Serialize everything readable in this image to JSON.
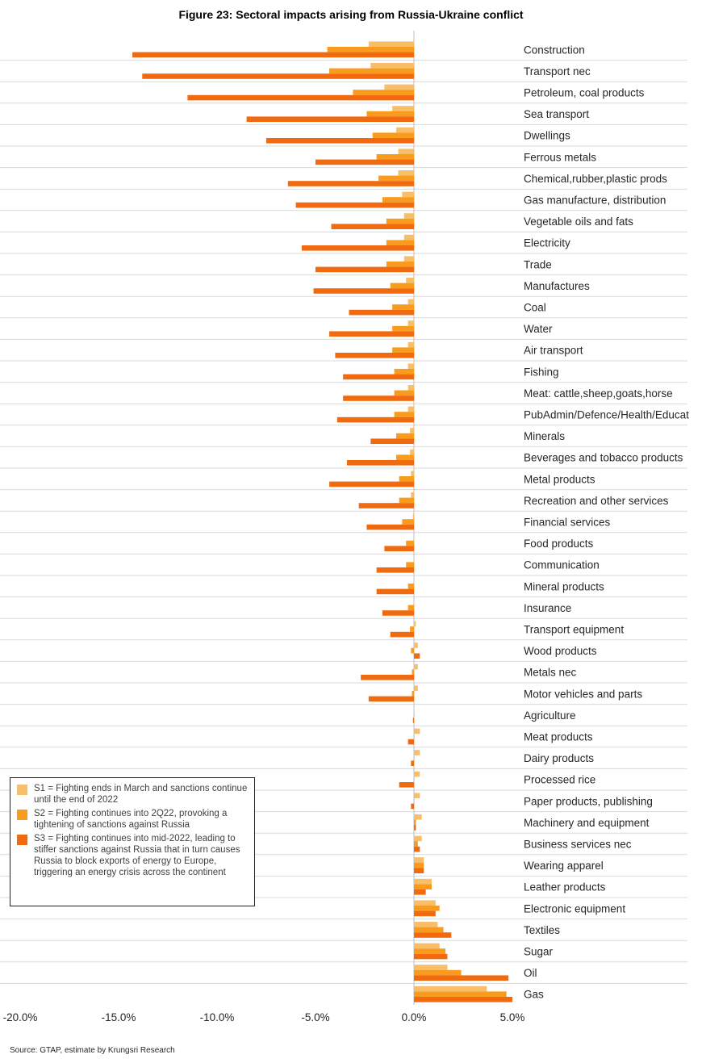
{
  "title": "Figure 23: Sectoral impacts arising from Russia-Ukraine conflict",
  "source": "Source: GTAP, estimate by Krungsri Research",
  "colors": {
    "s1": "#F8BE6A",
    "s2": "#F99B1C",
    "s3": "#F26A10",
    "grid": "#D9D9D9",
    "axis": "#BFBFBF"
  },
  "legend": [
    {
      "label": "S1 = Fighting ends in March and sanctions continue until the end of 2022",
      "color": "#F8BE6A"
    },
    {
      "label": "S2 = Fighting continues into 2Q22, provoking a tightening of sanctions against Russia",
      "color": "#F99B1C"
    },
    {
      "label": "S3 = Fighting continues into mid-2022, leading to stiffer sanctions against Russia that in turn causes Russia to block exports of energy to Europe, triggering an energy crisis across the continent",
      "color": "#F26A10"
    }
  ],
  "chart_data": {
    "type": "bar",
    "orientation": "horizontal",
    "title": "Figure 23: Sectoral impacts arising from Russia-Ukraine conflict",
    "xlim": [
      -20,
      5
    ],
    "xticks": [
      -20,
      -15,
      -10,
      -5,
      0,
      5
    ],
    "xtick_labels": [
      "-20.0%",
      "-15.0%",
      "-10.0%",
      "-5.0%",
      "0.0%",
      "5.0%"
    ],
    "unit": "%",
    "legend_position": "bottom-left",
    "categories": [
      "Construction",
      "Transport nec",
      "Petroleum, coal products",
      "Sea transport",
      "Dwellings",
      "Ferrous metals",
      "Chemical,rubber,plastic prods",
      "Gas manufacture, distribution",
      "Vegetable oils and fats",
      "Electricity",
      "Trade",
      "Manufactures",
      "Coal",
      "Water",
      "Air transport",
      "Fishing",
      "Meat: cattle,sheep,goats,horse",
      "PubAdmin/Defence/Health/Educat",
      "Minerals",
      "Beverages and tobacco products",
      "Metal products",
      "Recreation and other services",
      "Financial services",
      "Food products",
      "Communication",
      "Mineral products",
      "Insurance",
      "Transport equipment",
      "Wood products",
      "Metals nec",
      "Motor vehicles and parts",
      "Agriculture",
      "Meat products",
      "Dairy products",
      "Processed rice",
      "Paper products, publishing",
      "Machinery and equipment",
      "Business services nec",
      "Wearing apparel",
      "Leather products",
      "Electronic equipment",
      "Textiles",
      "Sugar",
      "Oil",
      "Gas"
    ],
    "series": [
      {
        "name": "S1",
        "values": [
          -2.3,
          -2.2,
          -1.5,
          -1.1,
          -0.9,
          -0.8,
          -0.8,
          -0.6,
          -0.5,
          -0.5,
          -0.5,
          -0.4,
          -0.3,
          -0.3,
          -0.3,
          -0.3,
          -0.3,
          -0.3,
          -0.2,
          -0.2,
          -0.15,
          -0.15,
          -0.05,
          0.0,
          0.0,
          0.0,
          0.0,
          0.1,
          0.2,
          0.2,
          0.2,
          0.0,
          0.3,
          0.3,
          0.3,
          0.3,
          0.4,
          0.4,
          0.5,
          0.9,
          1.1,
          1.2,
          1.3,
          1.7,
          3.7
        ]
      },
      {
        "name": "S2",
        "values": [
          -4.4,
          -4.3,
          -3.1,
          -2.4,
          -2.1,
          -1.9,
          -1.8,
          -1.6,
          -1.4,
          -1.4,
          -1.4,
          -1.2,
          -1.1,
          -1.1,
          -1.1,
          -1.0,
          -1.0,
          -1.0,
          -0.9,
          -0.9,
          -0.75,
          -0.75,
          -0.6,
          -0.4,
          -0.4,
          -0.3,
          -0.3,
          -0.2,
          -0.15,
          -0.1,
          -0.1,
          0.0,
          0.0,
          0.0,
          0.0,
          0.0,
          0.1,
          0.2,
          0.5,
          0.9,
          1.3,
          1.5,
          1.6,
          2.4,
          4.7
        ]
      },
      {
        "name": "S3",
        "values": [
          -14.3,
          -13.8,
          -11.5,
          -8.5,
          -7.5,
          -5.0,
          -6.4,
          -6.0,
          -4.2,
          -5.7,
          -5.0,
          -5.1,
          -3.3,
          -4.3,
          -4.0,
          -3.6,
          -3.6,
          -3.9,
          -2.2,
          -3.4,
          -4.3,
          -2.8,
          -2.4,
          -1.5,
          -1.9,
          -1.9,
          -1.6,
          -1.2,
          0.3,
          -2.7,
          -2.3,
          -0.05,
          -0.3,
          -0.15,
          -0.75,
          -0.15,
          0.1,
          0.3,
          0.5,
          0.6,
          1.1,
          1.9,
          1.7,
          4.8,
          5.0
        ]
      }
    ]
  }
}
